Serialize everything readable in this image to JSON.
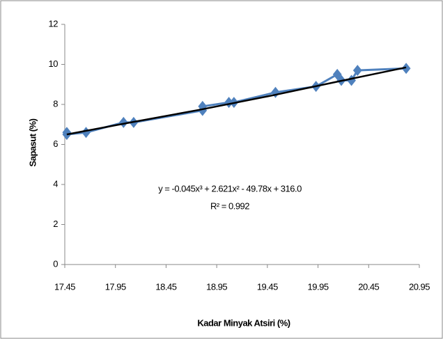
{
  "chart_data": {
    "type": "scatter-line",
    "x_label": "Kadar Minyak Atsiri (%)",
    "y_label": "Sapasut (%)",
    "equation": "y = -0.045x³ + 2.621x² - 49.78x + 316.0",
    "r_squared": "R² = 0.992",
    "series": [
      {
        "color": "#4f81bd",
        "x": [
          17.47,
          17.47,
          17.66,
          18.03,
          18.13,
          18.81,
          18.81,
          19.07,
          19.12,
          19.53,
          19.93,
          20.14,
          20.18,
          20.28,
          20.34,
          20.82
        ],
        "values": [
          6.6,
          6.5,
          6.6,
          7.1,
          7.1,
          7.7,
          7.9,
          8.1,
          8.1,
          8.6,
          8.9,
          9.5,
          9.2,
          9.2,
          9.7,
          9.8
        ]
      }
    ],
    "trendline": {
      "color": "#000000",
      "x": [
        17.47,
        18.1,
        18.8,
        19.5,
        20.2,
        20.82
      ],
      "values": [
        6.5,
        7.1,
        7.75,
        8.45,
        9.2,
        9.85
      ]
    },
    "xlim": [
      17.45,
      20.95
    ],
    "xticks": [
      17.45,
      17.95,
      18.45,
      18.95,
      19.45,
      19.95,
      20.45,
      20.95
    ],
    "ylim": [
      0,
      12
    ],
    "yticks": [
      0,
      2,
      4,
      6,
      8,
      10,
      12
    ]
  }
}
